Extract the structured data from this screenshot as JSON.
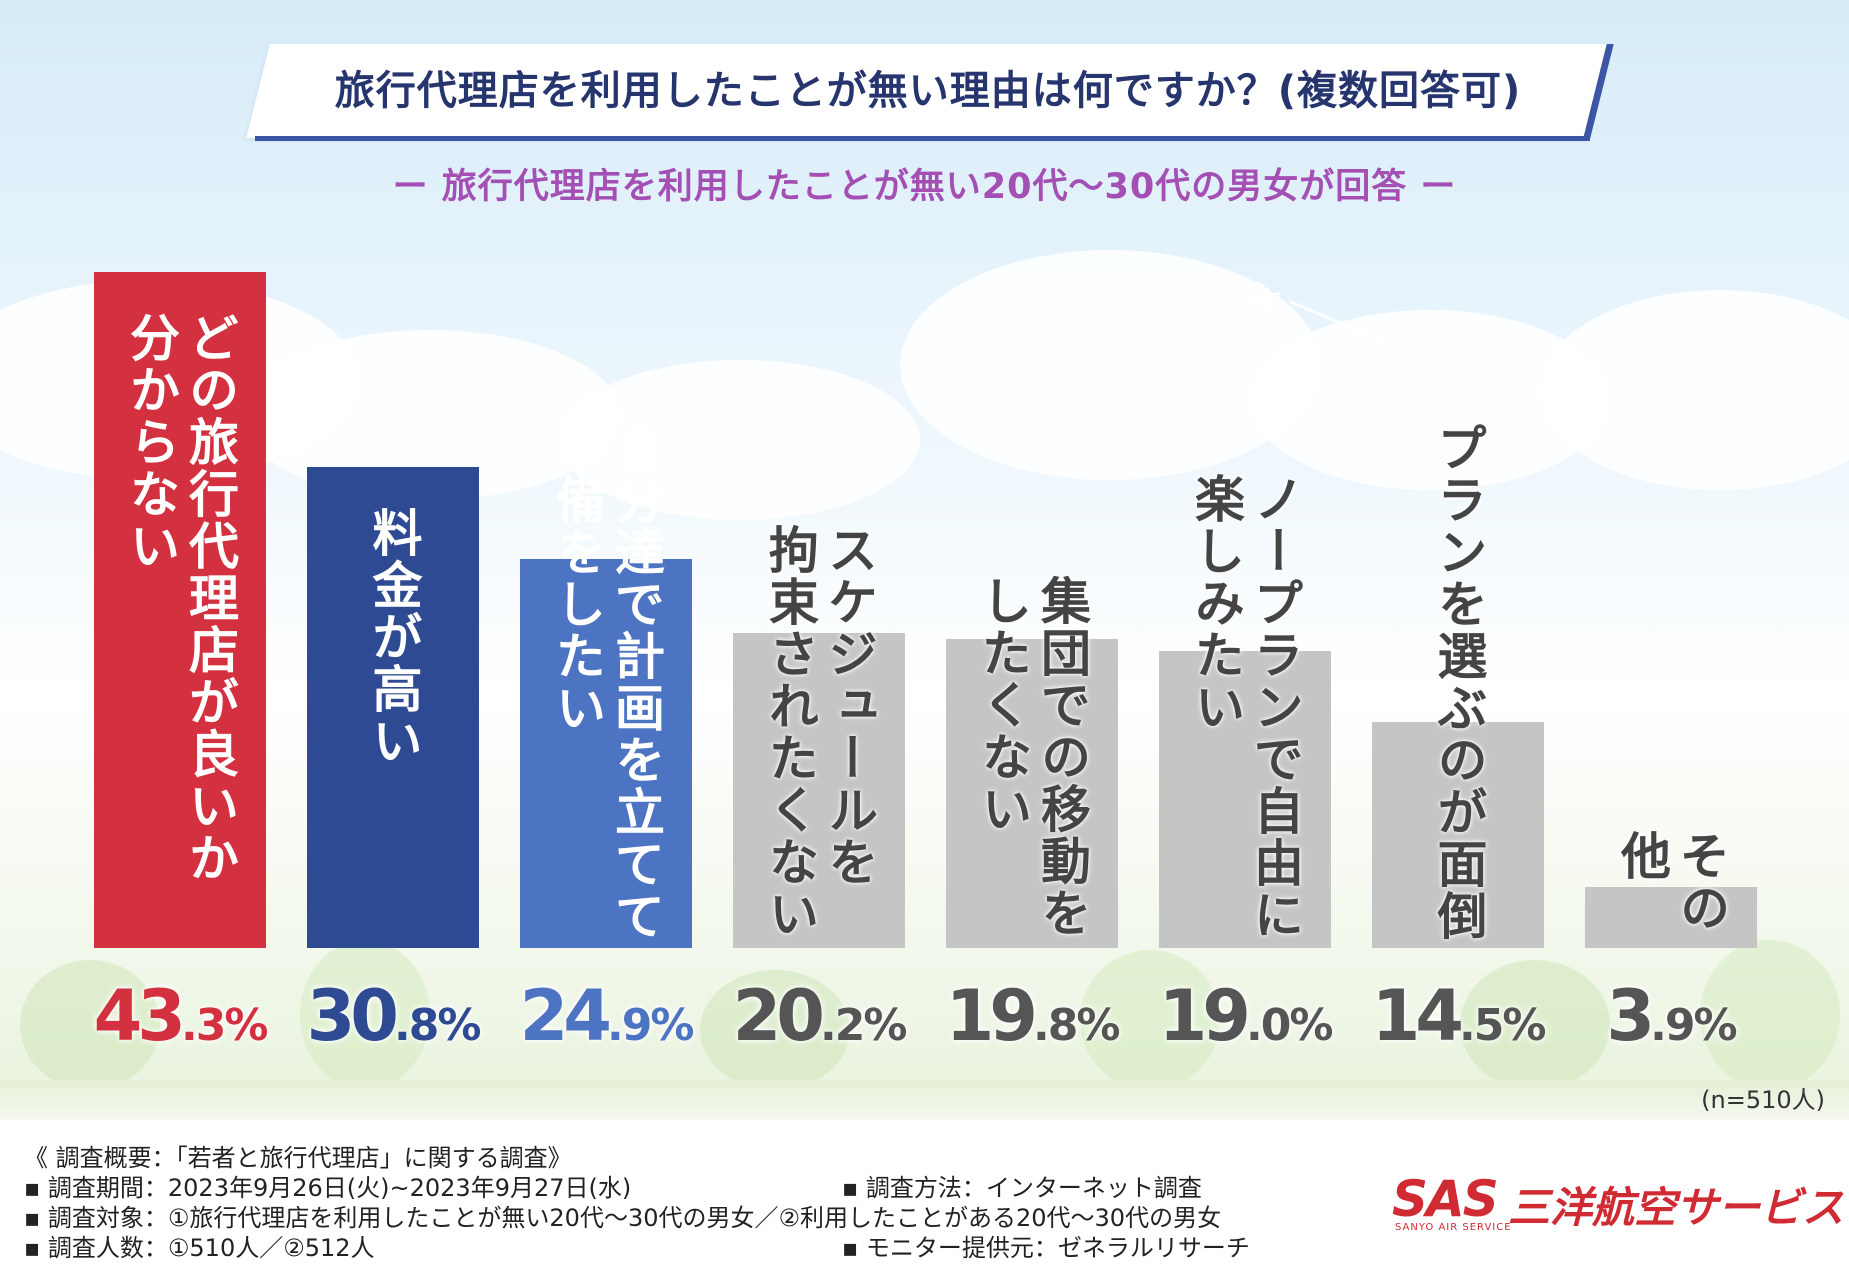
{
  "header": {
    "title": "旅行代理店を利用したことが無い理由は何ですか？(複数回答可)",
    "subtitle": "ー 旅行代理店を利用したことが無い20代〜30代の男女が回答 ー"
  },
  "chart_data": {
    "type": "bar",
    "title": "旅行代理店を利用したことが無い理由は何ですか？(複数回答可)",
    "ylabel": "",
    "xlabel": "",
    "ylim": [
      0,
      45
    ],
    "categories": [
      "どの旅行代理店が良いか分からない",
      "料金が高い",
      "自分達で計画を立てて準備をしたい",
      "スケジュールを拘束されたくない",
      "集団での移動をしたくない",
      "ノープランで自由に楽しみたい",
      "プランを選ぶのが面倒",
      "その他"
    ],
    "values": [
      43.3,
      30.8,
      24.9,
      20.2,
      19.8,
      19.0,
      14.5,
      3.9
    ],
    "label_columns": [
      [
        "どの旅行代理店が良いか",
        "分からない"
      ],
      [
        "料金が高い"
      ],
      [
        "自分達で計画を立てて",
        "準備をしたい"
      ],
      [
        "スケジュールを",
        "拘束されたくない"
      ],
      [
        "集団での移動を",
        "したくない"
      ],
      [
        "ノープランで自由に",
        "楽しみたい"
      ],
      [
        "プランを選ぶのが面倒"
      ],
      [
        "その",
        "他"
      ]
    ],
    "value_labels": [
      {
        "int": "43",
        "dec": ".3%"
      },
      {
        "int": "30",
        "dec": ".8%"
      },
      {
        "int": "24",
        "dec": ".9%"
      },
      {
        "int": "20",
        "dec": ".2%"
      },
      {
        "int": "19",
        "dec": ".8%"
      },
      {
        "int": "19",
        "dec": ".0%"
      },
      {
        "int": "14",
        "dec": ".5%"
      },
      {
        "int": "3",
        "dec": ".9%"
      }
    ],
    "colors": [
      "#d3313f",
      "#2e4a92",
      "#4d74c2",
      "#c5c5c5",
      "#c5c5c5",
      "#c5c5c5",
      "#c5c5c5",
      "#c5c5c5"
    ],
    "value_colors": [
      "#d3313f",
      "#2e4a92",
      "#4d74c2",
      "#555555",
      "#555555",
      "#555555",
      "#555555",
      "#555555"
    ],
    "label_dark": [
      false,
      false,
      false,
      true,
      true,
      true,
      true,
      true
    ],
    "note": "(n=510人)"
  },
  "footer": {
    "line1": "《 調査概要：「若者と旅行代理店」に関する調査》",
    "line2": "▪ 調査期間：2023年9月26日(火)~2023年9月27日(水)",
    "line2b": "▪ 調査方法：インターネット調査",
    "line3": "▪ 調査対象：①旅行代理店を利用したことが無い20代〜30代の男女／②利用したことがある20代〜30代の男女",
    "line4": "▪ 調査人数：①510人／②512人",
    "line4b": "▪ モニター提供元：ゼネラルリサーチ"
  },
  "logo": {
    "mark": "SAS",
    "name": "三洋航空サービス",
    "english": "SANYO AIR SERVICE"
  },
  "colors": {
    "title": "#27356f",
    "subtitle": "#a44fb4",
    "accent_red": "#d02a33"
  }
}
